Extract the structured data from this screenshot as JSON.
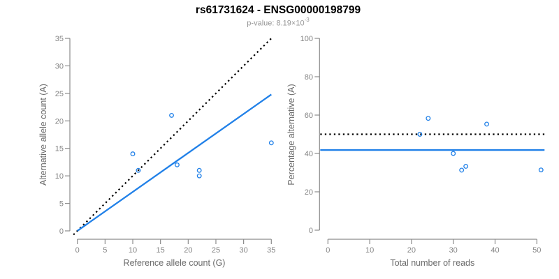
{
  "header": {
    "title": "rs61731624 - ENSG00000198799",
    "pvalue_prefix": "p-value: 8.19×10",
    "pvalue_exponent": "-3"
  },
  "colors": {
    "points_and_fit": "#2080e8",
    "reference_line": "#000000",
    "axis": "#8c8c8c",
    "tick_text": "#848484",
    "label_text": "#6b6b6b"
  },
  "chart_data": [
    {
      "type": "scatter",
      "name": "ref-vs-alt-counts",
      "xlabel": "Reference allele count (G)",
      "ylabel": "Alternative allele count (A)",
      "xlim": [
        0,
        35
      ],
      "ylim": [
        0,
        35
      ],
      "xticks": [
        0,
        5,
        10,
        15,
        20,
        25,
        30,
        35
      ],
      "yticks": [
        0,
        5,
        10,
        15,
        20,
        25,
        30,
        35
      ],
      "grid": false,
      "points": [
        [
          10,
          14
        ],
        [
          11,
          11
        ],
        [
          17,
          21
        ],
        [
          18,
          12
        ],
        [
          22,
          10
        ],
        [
          22,
          11
        ],
        [
          35,
          16
        ]
      ],
      "lines": [
        {
          "name": "identity-line",
          "style": "dotted",
          "color": "#000000",
          "from": [
            -0.7,
            -0.7
          ],
          "to": [
            35,
            35
          ]
        },
        {
          "name": "fit-line",
          "style": "solid",
          "color": "#2080e8",
          "from": [
            0,
            0
          ],
          "to": [
            35,
            24.8
          ]
        }
      ]
    },
    {
      "type": "scatter",
      "name": "pct-alt-vs-reads",
      "xlabel": "Total number of reads",
      "ylabel": "Percentage alternative (A)",
      "xlim": [
        0,
        50
      ],
      "ylim": [
        0,
        100
      ],
      "xticks": [
        0,
        10,
        20,
        30,
        40,
        50
      ],
      "yticks": [
        0,
        20,
        40,
        60,
        80,
        100
      ],
      "grid": false,
      "points": [
        [
          22,
          50
        ],
        [
          24,
          58.3
        ],
        [
          30,
          40
        ],
        [
          32,
          31.3
        ],
        [
          33,
          33.3
        ],
        [
          38,
          55.3
        ],
        [
          51,
          31.4
        ]
      ],
      "lines": [
        {
          "name": "expected-50pct-line",
          "style": "dotted",
          "color": "#000000",
          "y": 50
        },
        {
          "name": "observed-pct-line",
          "style": "solid",
          "color": "#2080e8",
          "y": 41.8
        }
      ]
    }
  ]
}
